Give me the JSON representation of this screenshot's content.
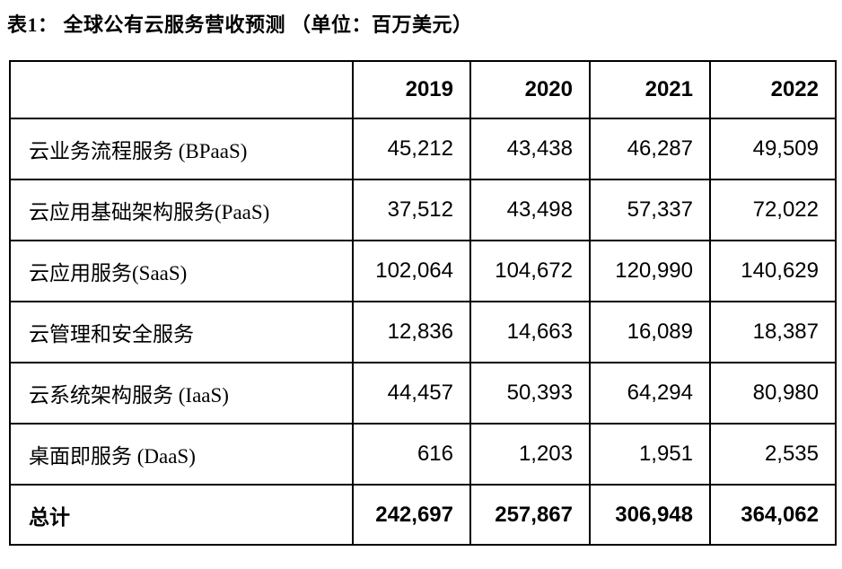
{
  "page": {
    "title": "表1： 全球公有云服务营收预测 （单位：百万美元）"
  },
  "colors": {
    "text": "#000000",
    "border": "#000000",
    "background": "#ffffff"
  },
  "table": {
    "columns": [
      "",
      "2019",
      "2020",
      "2021",
      "2022"
    ],
    "rows": [
      {
        "label": "云业务流程服务 (BPaaS)",
        "values": [
          "45,212",
          "43,438",
          "46,287",
          "49,509"
        ]
      },
      {
        "label": "云应用基础架构服务(PaaS)",
        "values": [
          "37,512",
          "43,498",
          "57,337",
          "72,022"
        ]
      },
      {
        "label": "云应用服务(SaaS)",
        "values": [
          "102,064",
          "104,672",
          "120,990",
          "140,629"
        ]
      },
      {
        "label": "云管理和安全服务",
        "values": [
          "12,836",
          "14,663",
          "16,089",
          "18,387"
        ]
      },
      {
        "label": "云系统架构服务 (IaaS)",
        "values": [
          "44,457",
          "50,393",
          "64,294",
          "80,980"
        ]
      },
      {
        "label": "桌面即服务 (DaaS)",
        "values": [
          "616",
          "1,203",
          "1,951",
          "2,535"
        ]
      }
    ],
    "total": {
      "label": "总计",
      "values": [
        "242,697",
        "257,867",
        "306,948",
        "364,062"
      ]
    }
  },
  "chart_data": {
    "type": "table",
    "title": "表1： 全球公有云服务营收预测 （单位：百万美元）",
    "unit": "百万美元",
    "categories": [
      "2019",
      "2020",
      "2021",
      "2022"
    ],
    "series": [
      {
        "name": "云业务流程服务 (BPaaS)",
        "values": [
          45212,
          43438,
          46287,
          49509
        ]
      },
      {
        "name": "云应用基础架构服务(PaaS)",
        "values": [
          37512,
          43498,
          57337,
          72022
        ]
      },
      {
        "name": "云应用服务(SaaS)",
        "values": [
          102064,
          104672,
          120990,
          140629
        ]
      },
      {
        "name": "云管理和安全服务",
        "values": [
          12836,
          14663,
          16089,
          18387
        ]
      },
      {
        "name": "云系统架构服务 (IaaS)",
        "values": [
          44457,
          50393,
          64294,
          80980
        ]
      },
      {
        "name": "桌面即服务 (DaaS)",
        "values": [
          616,
          1203,
          1951,
          2535
        ]
      },
      {
        "name": "总计",
        "values": [
          242697,
          257867,
          306948,
          364062
        ]
      }
    ]
  }
}
